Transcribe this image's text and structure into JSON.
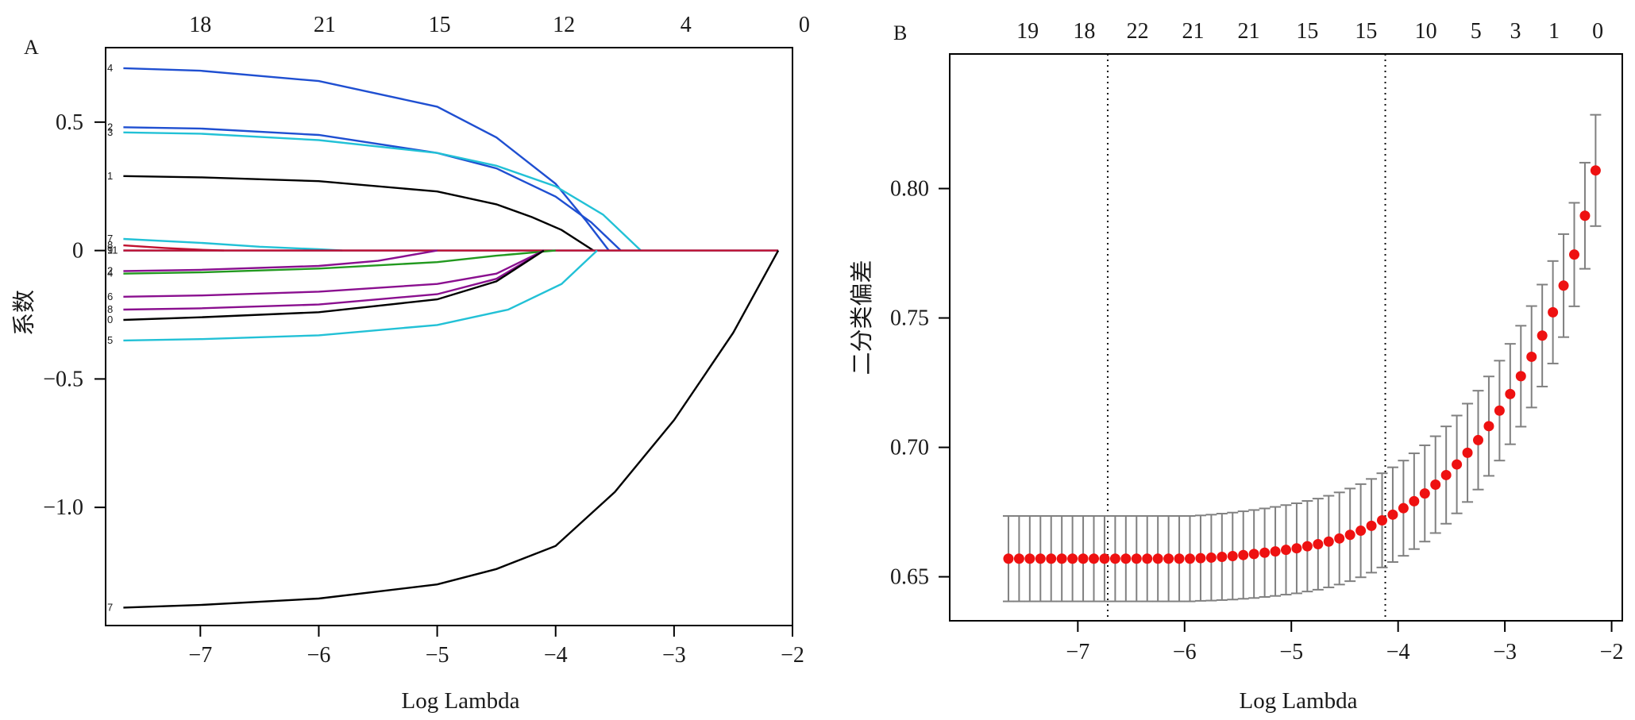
{
  "chart_data": [
    {
      "panel": "A",
      "type": "line",
      "xlabel": "Log Lambda",
      "ylabel": "系数",
      "xlim": [
        -7.8,
        -2.0
      ],
      "ylim": [
        -1.46,
        0.79
      ],
      "x_ticks": [
        -7,
        -6,
        -5,
        -4,
        -3,
        -2
      ],
      "x_tick_labels": [
        "−7",
        "−6",
        "−5",
        "−4",
        "−3",
        "−2"
      ],
      "y_ticks": [
        -1.0,
        -0.5,
        0,
        0.5
      ],
      "y_tick_labels": [
        "−1.0",
        "−0.5",
        "0",
        "0.5"
      ],
      "top_axis": {
        "positions": [
          -7.0,
          -5.95,
          -4.98,
          -3.93,
          -2.9,
          -1.9
        ],
        "labels": [
          "18",
          "21",
          "15",
          "12",
          "4",
          "0"
        ]
      },
      "series": [
        {
          "label": "4",
          "color": "#1f4fd1",
          "x": [
            -7.65,
            -7.0,
            -6.0,
            -5.0,
            -4.5,
            -4.0,
            -3.75,
            -3.55
          ],
          "y": [
            0.71,
            0.7,
            0.66,
            0.56,
            0.44,
            0.26,
            0.12,
            0.0
          ]
        },
        {
          "label": "2",
          "color": "#1f4fd1",
          "x": [
            -7.65,
            -7.0,
            -6.0,
            -5.0,
            -4.5,
            -4.0,
            -3.7,
            -3.45
          ],
          "y": [
            0.48,
            0.475,
            0.45,
            0.38,
            0.32,
            0.21,
            0.11,
            0.0
          ]
        },
        {
          "label": "3",
          "color": "#22c1d6",
          "x": [
            -7.65,
            -7.0,
            -6.0,
            -5.0,
            -4.5,
            -4.0,
            -3.6,
            -3.28
          ],
          "y": [
            0.46,
            0.455,
            0.43,
            0.38,
            0.33,
            0.25,
            0.14,
            0.0
          ]
        },
        {
          "label": "1",
          "color": "#000000",
          "x": [
            -7.65,
            -7.0,
            -6.0,
            -5.0,
            -4.5,
            -4.2,
            -3.95,
            -3.68
          ],
          "y": [
            0.29,
            0.285,
            0.27,
            0.23,
            0.18,
            0.13,
            0.08,
            0.0
          ]
        },
        {
          "label": "7",
          "color": "#22c1d6",
          "x": [
            -7.65,
            -7.0,
            -6.5,
            -6.0,
            -5.8
          ],
          "y": [
            0.045,
            0.03,
            0.015,
            0.005,
            0.0
          ]
        },
        {
          "label": "8",
          "color": "#c0102e",
          "x": [
            -7.65,
            -7.3,
            -7.0,
            -6.8
          ],
          "y": [
            0.02,
            0.01,
            0.003,
            0.0
          ]
        },
        {
          "label": "11",
          "color": "#1f4fd1",
          "x": [
            -7.65,
            -2.12
          ],
          "y": [
            0.0,
            0.0
          ]
        },
        {
          "label": "9",
          "color": "#c0102e",
          "x": [
            -7.65,
            -2.12
          ],
          "y": [
            0.0,
            0.0
          ]
        },
        {
          "label": "2",
          "color": "#8a0f8f",
          "x": [
            -7.65,
            -7.0,
            -6.0,
            -5.5,
            -5.0
          ],
          "y": [
            -0.08,
            -0.075,
            -0.06,
            -0.04,
            0.0
          ]
        },
        {
          "label": "4",
          "color": "#22991f",
          "x": [
            -7.65,
            -7.0,
            -6.0,
            -5.0,
            -4.5,
            -4.0
          ],
          "y": [
            -0.09,
            -0.085,
            -0.07,
            -0.045,
            -0.02,
            0.0
          ]
        },
        {
          "label": "6",
          "color": "#8a0f8f",
          "x": [
            -7.65,
            -7.0,
            -6.0,
            -5.0,
            -4.5,
            -4.1
          ],
          "y": [
            -0.18,
            -0.175,
            -0.16,
            -0.13,
            -0.09,
            0.0
          ]
        },
        {
          "label": "8",
          "color": "#8a0f8f",
          "x": [
            -7.65,
            -7.0,
            -6.0,
            -5.0,
            -4.5,
            -4.1
          ],
          "y": [
            -0.23,
            -0.225,
            -0.21,
            -0.17,
            -0.11,
            0.0
          ]
        },
        {
          "label": "0",
          "color": "#000000",
          "x": [
            -7.65,
            -7.0,
            -6.0,
            -5.0,
            -4.5,
            -4.1
          ],
          "y": [
            -0.27,
            -0.26,
            -0.24,
            -0.19,
            -0.12,
            0.0
          ]
        },
        {
          "label": "5",
          "color": "#22c1d6",
          "x": [
            -7.65,
            -7.0,
            -6.0,
            -5.0,
            -4.4,
            -3.95,
            -3.65
          ],
          "y": [
            -0.35,
            -0.345,
            -0.33,
            -0.29,
            -0.23,
            -0.13,
            0.0
          ]
        },
        {
          "label": "7",
          "color": "#000000",
          "x": [
            -7.65,
            -7.0,
            -6.0,
            -5.0,
            -4.5,
            -4.0,
            -3.5,
            -3.0,
            -2.5,
            -2.12
          ],
          "y": [
            -1.39,
            -1.38,
            -1.355,
            -1.3,
            -1.24,
            -1.15,
            -0.94,
            -0.66,
            -0.32,
            0.0
          ]
        }
      ]
    },
    {
      "panel": "B",
      "type": "scatter",
      "xlabel": "Log Lambda",
      "ylabel": "二分类偏差",
      "xlim": [
        -8.2,
        -1.9
      ],
      "ylim": [
        0.633,
        0.852
      ],
      "x_ticks": [
        -7,
        -6,
        -5,
        -4,
        -3,
        -2
      ],
      "x_tick_labels": [
        "−7",
        "−6",
        "−5",
        "−4",
        "−3",
        "−2"
      ],
      "y_ticks": [
        0.65,
        0.7,
        0.75,
        0.8
      ],
      "y_tick_labels": [
        "0.65",
        "0.70",
        "0.75",
        "0.80"
      ],
      "top_axis": {
        "positions": [
          -7.47,
          -6.94,
          -6.44,
          -5.92,
          -5.4,
          -4.85,
          -4.3,
          -3.74,
          -3.27,
          -2.9,
          -2.54,
          -2.13
        ],
        "labels": [
          "19",
          "18",
          "22",
          "21",
          "21",
          "15",
          "15",
          "10",
          "5",
          "3",
          "1",
          "0"
        ]
      },
      "vlines": [
        -6.72,
        -4.12
      ],
      "point_color": "#ee1111",
      "error_bar_color": "#808080",
      "x": [
        -7.65,
        -7.55,
        -7.45,
        -7.35,
        -7.25,
        -7.15,
        -7.05,
        -6.95,
        -6.85,
        -6.75,
        -6.65,
        -6.55,
        -6.45,
        -6.35,
        -6.25,
        -6.15,
        -6.05,
        -5.95,
        -5.85,
        -5.75,
        -5.65,
        -5.55,
        -5.45,
        -5.35,
        -5.25,
        -5.15,
        -5.05,
        -4.95,
        -4.85,
        -4.75,
        -4.65,
        -4.55,
        -4.45,
        -4.35,
        -4.25,
        -4.15,
        -4.05,
        -3.95,
        -3.85,
        -3.75,
        -3.65,
        -3.55,
        -3.45,
        -3.35,
        -3.25,
        -3.15,
        -3.05,
        -2.95,
        -2.85,
        -2.75,
        -2.65,
        -2.55,
        -2.45,
        -2.35,
        -2.25,
        -2.15
      ],
      "y": [
        0.657,
        0.657,
        0.657,
        0.657,
        0.657,
        0.657,
        0.657,
        0.657,
        0.657,
        0.657,
        0.657,
        0.657,
        0.657,
        0.657,
        0.657,
        0.657,
        0.657,
        0.657,
        0.6572,
        0.6574,
        0.6577,
        0.658,
        0.6584,
        0.6588,
        0.6593,
        0.6598,
        0.6604,
        0.661,
        0.6618,
        0.6626,
        0.6636,
        0.6648,
        0.6662,
        0.6678,
        0.6697,
        0.6718,
        0.674,
        0.6765,
        0.6792,
        0.6822,
        0.6856,
        0.6893,
        0.6934,
        0.6979,
        0.7028,
        0.7082,
        0.7142,
        0.7206,
        0.7275,
        0.735,
        0.7432,
        0.7522,
        0.7625,
        0.7745,
        0.7895,
        0.807
      ],
      "err": [
        0.0165,
        0.0165,
        0.0165,
        0.0165,
        0.0165,
        0.0165,
        0.0165,
        0.0165,
        0.0165,
        0.0165,
        0.0165,
        0.0165,
        0.0165,
        0.0165,
        0.0165,
        0.0165,
        0.0165,
        0.0165,
        0.0165,
        0.0166,
        0.0167,
        0.0168,
        0.0169,
        0.017,
        0.0171,
        0.0172,
        0.0173,
        0.0174,
        0.0175,
        0.0176,
        0.0177,
        0.0178,
        0.0179,
        0.018,
        0.0181,
        0.0182,
        0.0183,
        0.0184,
        0.0185,
        0.0186,
        0.0187,
        0.0188,
        0.0189,
        0.019,
        0.0191,
        0.0192,
        0.0193,
        0.0194,
        0.0195,
        0.0196,
        0.0197,
        0.0198,
        0.0199,
        0.02,
        0.0205,
        0.0215
      ]
    }
  ],
  "panels": {
    "a_label": "A",
    "b_label": "B"
  }
}
